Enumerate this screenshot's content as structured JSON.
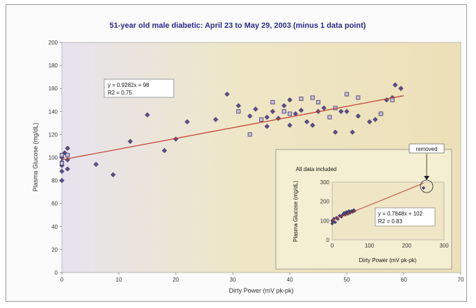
{
  "chart_data": [
    {
      "type": "scatter",
      "title": "51-year old male diabetic:  April 23 to May 29, 2003 (minus 1 data point)",
      "xlabel": "Dirty Power (mV pk-pk)",
      "ylabel": "Plasma Glucose (mg/dL)",
      "xlim": [
        0,
        70
      ],
      "ylim": [
        0,
        200
      ],
      "xticks": [
        "0",
        "10",
        "20",
        "30",
        "40",
        "50",
        "60",
        "70"
      ],
      "yticks": [
        "0",
        "20",
        "40",
        "60",
        "80",
        "100",
        "120",
        "140",
        "160",
        "180",
        "200"
      ],
      "grid": false,
      "trendline": {
        "equation": "y = 0.9282x + 98",
        "r2": "R2 = 0.75",
        "slope": 0.9282,
        "intercept": 98
      },
      "series": [
        {
          "marker": "diamond",
          "points": [
            [
              0,
              80
            ],
            [
              0,
              88
            ],
            [
              0,
              93
            ],
            [
              0,
              96
            ],
            [
              0,
              100
            ],
            [
              0.5,
              104
            ],
            [
              1,
              90
            ],
            [
              1,
              98
            ],
            [
              1,
              108
            ],
            [
              6,
              94
            ],
            [
              9,
              85
            ],
            [
              12,
              114
            ],
            [
              15,
              137
            ],
            [
              18,
              106
            ],
            [
              20,
              116
            ],
            [
              22,
              131
            ],
            [
              27,
              133
            ],
            [
              29,
              155
            ],
            [
              31,
              145
            ],
            [
              33,
              136
            ],
            [
              34,
              142
            ],
            [
              36,
              127
            ],
            [
              36,
              135
            ],
            [
              37,
              140
            ],
            [
              38,
              134
            ],
            [
              39,
              145
            ],
            [
              40,
              128
            ],
            [
              40,
              150
            ],
            [
              41,
              138
            ],
            [
              42,
              141
            ],
            [
              43,
              131
            ],
            [
              44,
              128
            ],
            [
              45,
              140
            ],
            [
              46,
              143
            ],
            [
              48,
              122
            ],
            [
              49,
              140
            ],
            [
              50,
              140
            ],
            [
              51,
              122
            ],
            [
              52,
              136
            ],
            [
              54,
              131
            ],
            [
              55,
              133
            ],
            [
              56,
              138
            ],
            [
              57,
              150
            ],
            [
              58,
              152
            ],
            [
              58.5,
              163
            ],
            [
              59.5,
              160
            ]
          ]
        },
        {
          "marker": "square",
          "points": [
            [
              0,
              95
            ],
            [
              0,
              102
            ],
            [
              1,
              102
            ],
            [
              31,
              140
            ],
            [
              33,
              120
            ],
            [
              35,
              133
            ],
            [
              37,
              148
            ],
            [
              39,
              140
            ],
            [
              40,
              138
            ],
            [
              42,
              151
            ],
            [
              44,
              152
            ],
            [
              45,
              148
            ],
            [
              47,
              135
            ],
            [
              48,
              143
            ],
            [
              50,
              155
            ],
            [
              52,
              152
            ],
            [
              56,
              138
            ],
            [
              58,
              150
            ]
          ]
        }
      ]
    },
    {
      "type": "scatter",
      "title": "All data included",
      "xlabel": "Dirty Power (mV pk-pk)",
      "ylabel": "Plasma Glucose (mg/dL)",
      "xlim": [
        0,
        300
      ],
      "ylim": [
        0,
        300
      ],
      "xticks": [
        "0",
        "100",
        "200",
        "300"
      ],
      "yticks": [
        "0",
        "100",
        "200",
        "300"
      ],
      "trendline": {
        "equation": "y = 0.7848x + 102",
        "r2": "R2 = 0.83",
        "slope": 0.7848,
        "intercept": 102
      },
      "annotation": "removed",
      "points": [
        [
          0,
          85
        ],
        [
          0,
          100
        ],
        [
          2,
          95
        ],
        [
          5,
          110
        ],
        [
          8,
          92
        ],
        [
          12,
          115
        ],
        [
          15,
          108
        ],
        [
          20,
          125
        ],
        [
          25,
          120
        ],
        [
          28,
          130
        ],
        [
          32,
          140
        ],
        [
          35,
          130
        ],
        [
          38,
          145
        ],
        [
          42,
          135
        ],
        [
          45,
          150
        ],
        [
          48,
          140
        ],
        [
          52,
          150
        ],
        [
          55,
          145
        ],
        [
          58,
          155
        ],
        [
          60,
          150
        ],
        [
          245,
          270
        ]
      ]
    }
  ]
}
